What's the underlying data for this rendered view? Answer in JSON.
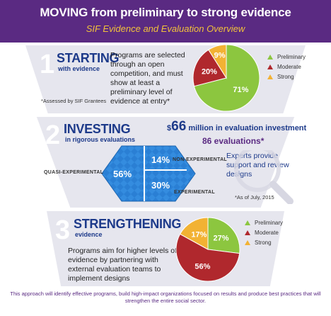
{
  "header": {
    "title": "MOVING from preliminary to strong evidence",
    "subtitle": "SIF Evidence and Evaluation Overview"
  },
  "colors": {
    "preliminary": "#8cc63f",
    "moderate": "#b0282d",
    "strong": "#f2b233",
    "purple": "#5a2a82",
    "blue": "#1d3a8a"
  },
  "section1": {
    "number": "1",
    "heading": "STARTING",
    "subheading": "with evidence",
    "body": "Programs are selected through an open competition, and must show at least a preliminary level of evidence at entry*",
    "footnote": "*Assessed by SIF Grantees",
    "pie": [
      {
        "label": "Preliminary",
        "value": 71,
        "text": "71%",
        "color": "#8cc63f"
      },
      {
        "label": "Moderate",
        "value": 20,
        "text": "20%",
        "color": "#b0282d"
      },
      {
        "label": "Strong",
        "value": 9,
        "text": "9%",
        "color": "#f2b233"
      }
    ],
    "legend": [
      "Preliminary",
      "Moderate",
      "Strong"
    ]
  },
  "section2": {
    "number": "2",
    "heading": "INVESTING",
    "subheading": "in rigorous evaluations",
    "dollar_prefix": "$",
    "dollar_value": "66",
    "dollar_rest": "million in evaluation investment",
    "evaluations": "86 evaluations*",
    "quasi_label": "QUASI-EXPERIMENTAL",
    "quasi_value": "56%",
    "nonexp_label": "NON-EXPERIMENTAL",
    "nonexp_value": "14%",
    "exp_label": "EXPERIMENTAL",
    "exp_value": "30%",
    "experts": "Experts provide support and review designs",
    "asof": "*As of July, 2015"
  },
  "section3": {
    "number": "3",
    "heading": "STRENGTHENING",
    "subheading": "evidence",
    "body": "Programs aim for higher levels of evidence by partnering with external evaluation teams to implement designs",
    "pie": [
      {
        "label": "Preliminary",
        "value": 27,
        "text": "27%",
        "color": "#8cc63f"
      },
      {
        "label": "Moderate",
        "value": 56,
        "text": "56%",
        "color": "#b0282d"
      },
      {
        "label": "Strong",
        "value": 17,
        "text": "17%",
        "color": "#f2b233"
      }
    ],
    "legend": [
      "Preliminary",
      "Moderate",
      "Strong"
    ]
  },
  "footer": "This approach will identify effective programs, build high-impact organizations focused on results and produce best practices that will strengthen the entire social sector."
}
